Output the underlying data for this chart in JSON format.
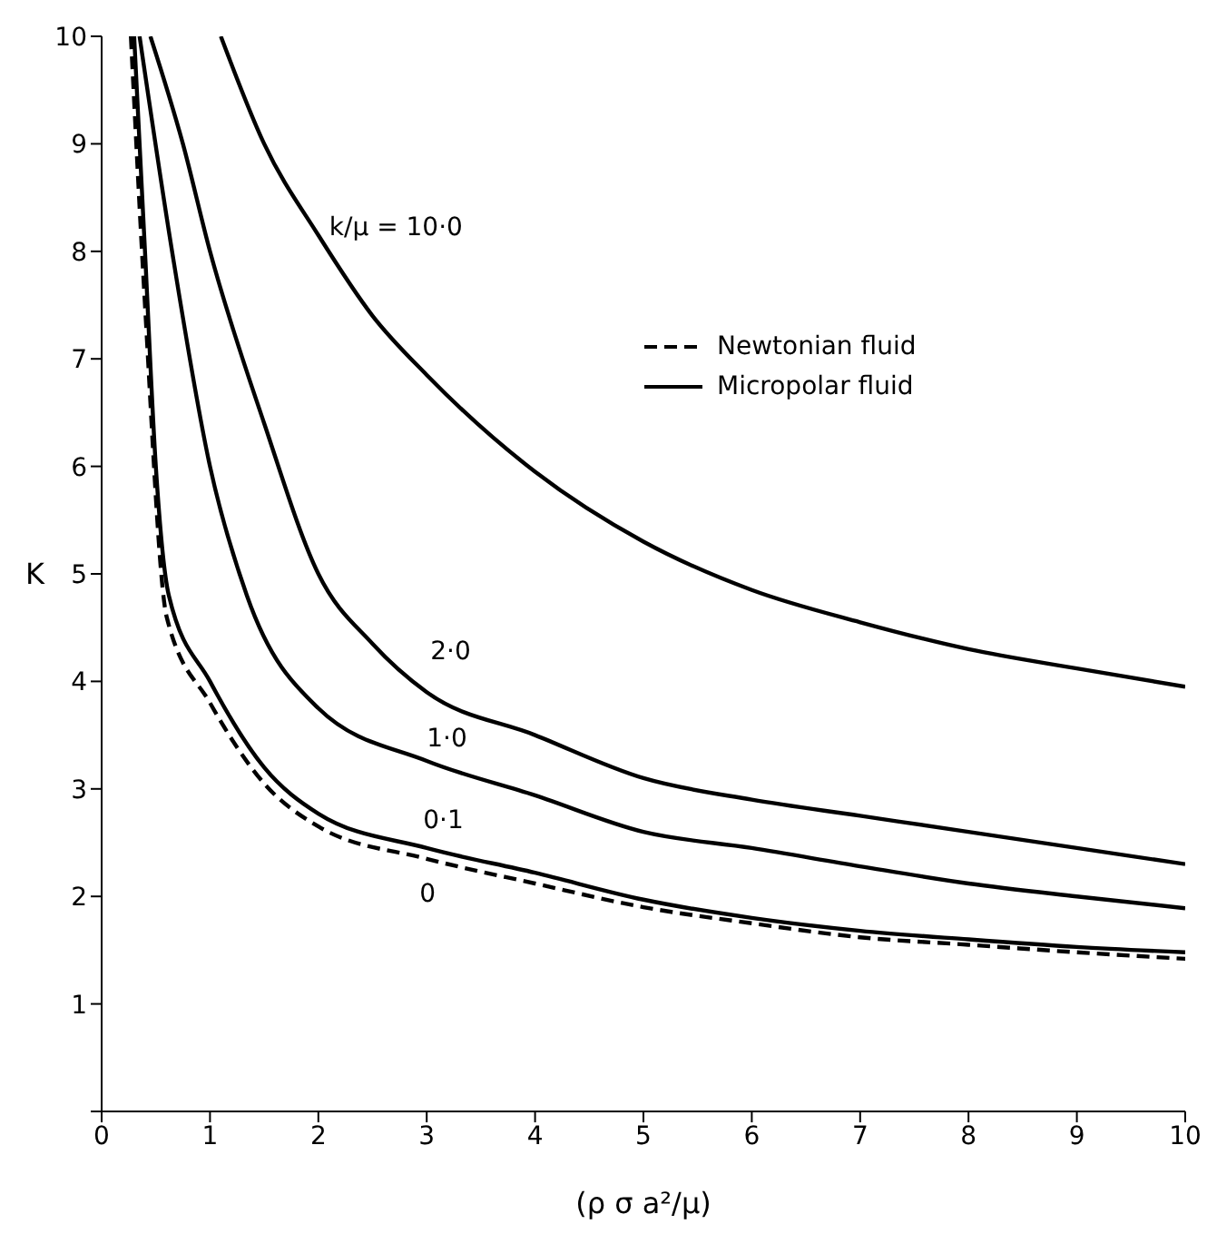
{
  "chart_data": {
    "type": "line",
    "xlabel": "(ρ σ a²/μ)",
    "ylabel": "K",
    "xlim": [
      0,
      10
    ],
    "ylim": [
      0,
      10
    ],
    "xticks": [
      0,
      1,
      2,
      3,
      4,
      5,
      6,
      7,
      8,
      9,
      10
    ],
    "yticks": [
      {
        "value": 0,
        "label": null
      },
      1,
      2,
      3,
      4,
      5,
      6,
      7,
      8,
      9,
      10
    ],
    "grid": false,
    "marker": "none",
    "series": [
      {
        "name": "0",
        "color": "#000000",
        "line_style": "dashed",
        "x": [
          0.27,
          0.4,
          0.6,
          1,
          1.5,
          2,
          3,
          4,
          5,
          6,
          7,
          8,
          9,
          10
        ],
        "values": [
          10,
          7.5,
          4.6,
          3.8,
          3.05,
          2.65,
          2.35,
          2.12,
          1.9,
          1.75,
          1.62,
          1.55,
          1.48,
          1.42
        ]
      },
      {
        "name": "0·1",
        "color": "#000000",
        "line_style": "solid",
        "x": [
          0.3,
          0.4,
          0.5,
          0.62,
          1,
          1.5,
          2,
          3,
          4,
          5,
          6,
          7,
          8,
          9,
          10
        ],
        "values": [
          10,
          8,
          6,
          4.8,
          4.0,
          3.2,
          2.77,
          2.45,
          2.22,
          1.97,
          1.8,
          1.68,
          1.6,
          1.53,
          1.48
        ]
      },
      {
        "name": "1·0",
        "color": "#000000",
        "line_style": "solid",
        "x": [
          0.35,
          0.65,
          1,
          1.34,
          2,
          3,
          4,
          5,
          6,
          7,
          8,
          9,
          10
        ],
        "values": [
          10,
          8,
          6,
          4.8,
          3.75,
          3.26,
          2.94,
          2.6,
          2.45,
          2.28,
          2.12,
          2.0,
          1.89
        ]
      },
      {
        "name": "2·0",
        "color": "#000000",
        "line_style": "solid",
        "x": [
          0.45,
          0.75,
          1,
          1.5,
          2,
          2.5,
          3,
          4,
          5,
          6,
          7,
          8,
          9,
          10
        ],
        "values": [
          10,
          9,
          8,
          6.4,
          5,
          4.35,
          3.9,
          3.5,
          3.1,
          2.9,
          2.75,
          2.6,
          2.45,
          2.3
        ]
      },
      {
        "name": "k/μ = 10·0",
        "color": "#000000",
        "line_style": "solid",
        "x": [
          1.1,
          1.5,
          2,
          2.5,
          3,
          4,
          5,
          6,
          7,
          8,
          9,
          10
        ],
        "values": [
          10,
          9,
          8.15,
          7.4,
          6.85,
          5.95,
          5.3,
          4.85,
          4.55,
          4.3,
          4.12,
          3.95
        ]
      }
    ],
    "annotations": [
      "Newtonian fluid",
      "Micropolar fluid"
    ]
  }
}
